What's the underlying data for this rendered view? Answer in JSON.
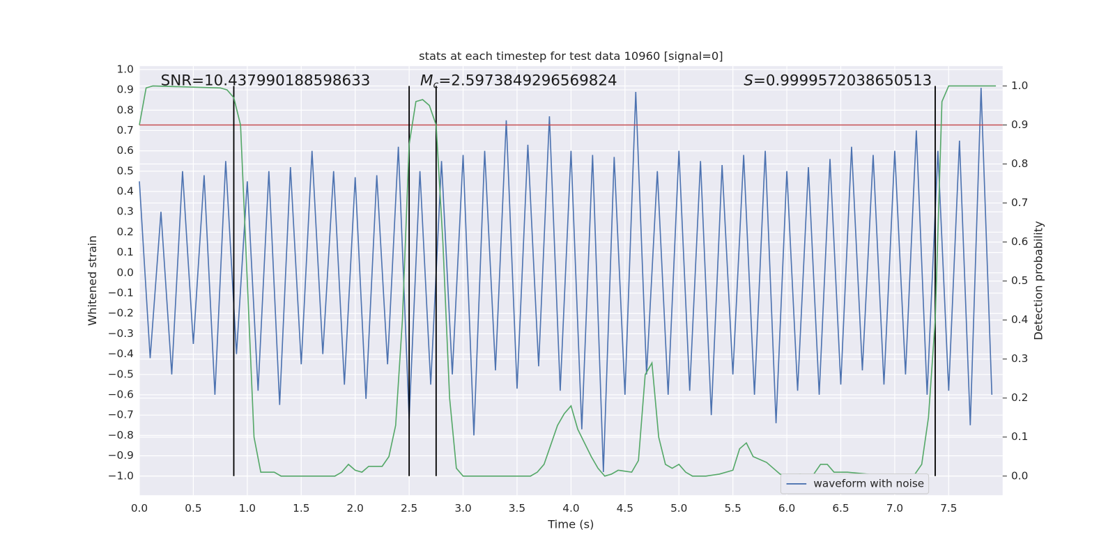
{
  "chart_data": {
    "type": "line",
    "title": "stats at each timestep for test data 10960 [signal=0]",
    "x_label": "Time (s)",
    "y_label": "Whitened strain",
    "y2_label": "Detection probability",
    "xlim": [
      0,
      8.0
    ],
    "ylim": [
      -1.094,
      1.017
    ],
    "y2lim": [
      -0.049,
      1.051
    ],
    "grid": true,
    "legend": "lower right",
    "xticks": [
      {
        "value": 0,
        "label": "0.0"
      },
      {
        "value": 0.5,
        "label": "0.5"
      },
      {
        "value": 1,
        "label": "1.0"
      },
      {
        "value": 1.5,
        "label": "1.5"
      },
      {
        "value": 2,
        "label": "2.0"
      },
      {
        "value": 2.5,
        "label": "2.5"
      },
      {
        "value": 3,
        "label": "3.0"
      },
      {
        "value": 3.5,
        "label": "3.5"
      },
      {
        "value": 4,
        "label": "4.0"
      },
      {
        "value": 4.5,
        "label": "4.5"
      },
      {
        "value": 5,
        "label": "5.0"
      },
      {
        "value": 5.5,
        "label": "5.5"
      },
      {
        "value": 6,
        "label": "6.0"
      },
      {
        "value": 6.5,
        "label": "6.5"
      },
      {
        "value": 7,
        "label": "7.0"
      },
      {
        "value": 7.5,
        "label": "7.5"
      }
    ],
    "yticks": [
      {
        "value": 1,
        "label": "1.0"
      },
      {
        "value": 0.9,
        "label": "0.9"
      },
      {
        "value": 0.8,
        "label": "0.8"
      },
      {
        "value": 0.7,
        "label": "0.7"
      },
      {
        "value": 0.6,
        "label": "0.6"
      },
      {
        "value": 0.5,
        "label": "0.5"
      },
      {
        "value": 0.4,
        "label": "0.4"
      },
      {
        "value": 0.3,
        "label": "0.3"
      },
      {
        "value": 0.2,
        "label": "0.2"
      },
      {
        "value": 0.1,
        "label": "0.1"
      },
      {
        "value": 0,
        "label": "0.0"
      },
      {
        "value": -0.1,
        "label": "−0.1"
      },
      {
        "value": -0.2,
        "label": "−0.2"
      },
      {
        "value": -0.3,
        "label": "−0.3"
      },
      {
        "value": -0.4,
        "label": "−0.4"
      },
      {
        "value": -0.5,
        "label": "−0.5"
      },
      {
        "value": -0.6,
        "label": "−0.6"
      },
      {
        "value": -0.7,
        "label": "−0.7"
      },
      {
        "value": -0.8,
        "label": "−0.8"
      },
      {
        "value": -0.9,
        "label": "−0.9"
      },
      {
        "value": -1,
        "label": "−1.0"
      }
    ],
    "y2ticks": [
      {
        "value": 1,
        "label": "1.0"
      },
      {
        "value": 0.9,
        "label": "0.9"
      },
      {
        "value": 0.8,
        "label": "0.8"
      },
      {
        "value": 0.7,
        "label": "0.7"
      },
      {
        "value": 0.6,
        "label": "0.6"
      },
      {
        "value": 0.5,
        "label": "0.5"
      },
      {
        "value": 0.4,
        "label": "0.4"
      },
      {
        "value": 0.3,
        "label": "0.3"
      },
      {
        "value": 0.2,
        "label": "0.2"
      },
      {
        "value": 0.1,
        "label": "0.1"
      },
      {
        "value": 0,
        "label": "0.0"
      }
    ],
    "series": [
      {
        "name": "waveform with noise",
        "color": "#4c72b0",
        "x": [
          0.0,
          0.1,
          0.2,
          0.3,
          0.4,
          0.5,
          0.6,
          0.7,
          0.8,
          0.9,
          1.0,
          1.1,
          1.2,
          1.3,
          1.4,
          1.5,
          1.6,
          1.7,
          1.8,
          1.9,
          2.0,
          2.1,
          2.2,
          2.3,
          2.4,
          2.5,
          2.6,
          2.7,
          2.8,
          2.9,
          3.0,
          3.1,
          3.2,
          3.3,
          3.4,
          3.5,
          3.6,
          3.7,
          3.8,
          3.9,
          4.0,
          4.1,
          4.2,
          4.3,
          4.4,
          4.5,
          4.6,
          4.7,
          4.8,
          4.9,
          5.0,
          5.1,
          5.2,
          5.3,
          5.4,
          5.5,
          5.6,
          5.7,
          5.8,
          5.9,
          6.0,
          6.1,
          6.2,
          6.3,
          6.4,
          6.5,
          6.6,
          6.7,
          6.8,
          6.9,
          7.0,
          7.1,
          7.2,
          7.3,
          7.4,
          7.5,
          7.6,
          7.7,
          7.8,
          7.9
        ],
        "values": [
          0.45,
          -0.42,
          0.3,
          -0.5,
          0.5,
          -0.35,
          0.48,
          -0.6,
          0.55,
          -0.4,
          0.45,
          -0.58,
          0.5,
          -0.65,
          0.52,
          -0.45,
          0.6,
          -0.4,
          0.5,
          -0.55,
          0.47,
          -0.62,
          0.48,
          -0.45,
          0.62,
          -0.72,
          0.5,
          -0.55,
          0.55,
          -0.5,
          0.58,
          -0.8,
          0.6,
          -0.48,
          0.75,
          -0.57,
          0.63,
          -0.46,
          0.77,
          -0.58,
          0.6,
          -0.77,
          0.58,
          -0.98,
          0.57,
          -0.6,
          0.89,
          -0.5,
          0.5,
          -0.6,
          0.6,
          -0.58,
          0.55,
          -0.7,
          0.53,
          -0.5,
          0.58,
          -0.6,
          0.6,
          -0.74,
          0.5,
          -0.58,
          0.52,
          -0.6,
          0.56,
          -0.55,
          0.62,
          -0.48,
          0.58,
          -0.55,
          0.6,
          -0.5,
          0.7,
          -0.6,
          0.6,
          -0.58,
          0.65,
          -0.75,
          0.91,
          -0.6
        ]
      },
      {
        "color": "#55a868",
        "axis": "y2",
        "x": [
          0.0,
          0.0625,
          0.125,
          0.75,
          0.8125,
          0.875,
          0.9375,
          1.0,
          1.0625,
          1.125,
          1.25,
          1.3125,
          1.4375,
          1.5625,
          1.6875,
          1.8125,
          1.875,
          1.9375,
          2.0,
          2.0625,
          2.125,
          2.25,
          2.3125,
          2.375,
          2.4375,
          2.5,
          2.5625,
          2.625,
          2.6875,
          2.75,
          2.8125,
          2.875,
          2.9375,
          3.0,
          3.125,
          3.5,
          3.625,
          3.6875,
          3.75,
          3.8125,
          3.875,
          3.9375,
          4.0,
          4.0625,
          4.1875,
          4.25,
          4.3125,
          4.375,
          4.4375,
          4.5625,
          4.625,
          4.6875,
          4.75,
          4.8125,
          4.875,
          4.9375,
          5.0,
          5.0625,
          5.125,
          5.25,
          5.375,
          5.5,
          5.5625,
          5.625,
          5.6875,
          5.8125,
          5.875,
          5.9375,
          6.0,
          6.125,
          6.1875,
          6.25,
          6.3125,
          6.375,
          6.4375,
          6.5625,
          6.75,
          6.875,
          7.125,
          7.1875,
          7.25,
          7.3125,
          7.375,
          7.4375,
          7.5,
          7.9375
        ],
        "values": [
          0.9,
          0.995,
          1.0,
          0.995,
          0.99,
          0.97,
          0.9,
          0.5,
          0.1,
          0.01,
          0.01,
          0.0,
          0.0,
          0.0,
          0.0,
          0.0,
          0.01,
          0.03,
          0.015,
          0.01,
          0.025,
          0.025,
          0.05,
          0.13,
          0.4,
          0.85,
          0.96,
          0.965,
          0.95,
          0.9,
          0.6,
          0.2,
          0.02,
          0.0,
          0.0,
          0.0,
          0.0,
          0.01,
          0.03,
          0.08,
          0.13,
          0.16,
          0.18,
          0.12,
          0.05,
          0.02,
          0.0,
          0.005,
          0.015,
          0.01,
          0.04,
          0.26,
          0.29,
          0.1,
          0.03,
          0.02,
          0.03,
          0.01,
          0.0,
          0.0,
          0.005,
          0.015,
          0.07,
          0.085,
          0.05,
          0.035,
          0.02,
          0.005,
          0.0,
          0.005,
          0.0,
          0.005,
          0.03,
          0.03,
          0.01,
          0.01,
          0.005,
          0.0,
          0.0,
          0.005,
          0.03,
          0.15,
          0.4,
          0.96,
          1.0,
          1.0
        ]
      }
    ],
    "hlines": [
      {
        "value": 0.9,
        "axis": "y2",
        "color": "#c44e52"
      }
    ],
    "vlines": {
      "x": [
        0.875,
        2.5,
        2.75,
        7.375
      ],
      "ymin": 0,
      "ymax": 1,
      "axis": "y2",
      "color": "#000000"
    },
    "annotations": [
      {
        "text": "SNR=10.437990188598633"
      },
      {
        "symbol": "M",
        "subscript": "c",
        "text": "=2.5973849296569824"
      },
      {
        "symbol": "S",
        "text": "=0.9999572038650513"
      }
    ]
  }
}
